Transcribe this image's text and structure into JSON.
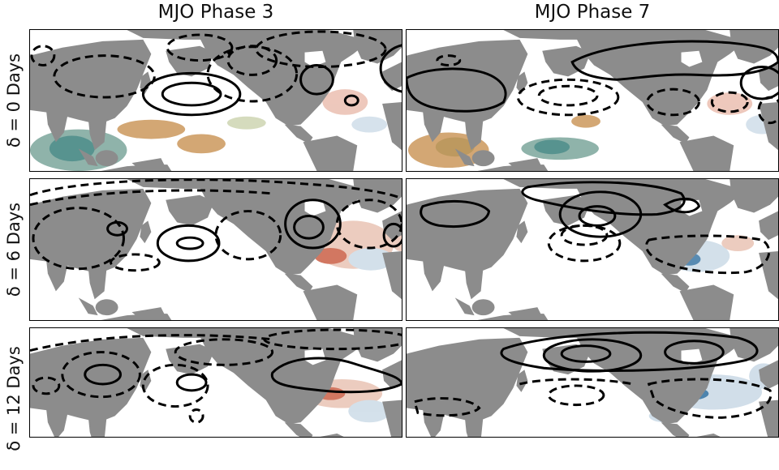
{
  "columns": [
    {
      "title": "MJO Phase 3"
    },
    {
      "title": "MJO Phase 7"
    }
  ],
  "rows": [
    {
      "label": "δ = 0 Days"
    },
    {
      "label": "δ = 6 Days"
    },
    {
      "label": "δ = 12 Days"
    }
  ],
  "map_style": {
    "land_color": "#8c8c8c",
    "ocean_color": "#ffffff",
    "positive_contour": "solid black",
    "negative_contour": "dashed black",
    "shading_warm": "#c8563a",
    "shading_cool": "#2f6fa0",
    "shading_wet": "#1f6f6a",
    "shading_dry": "#b9782a"
  }
}
